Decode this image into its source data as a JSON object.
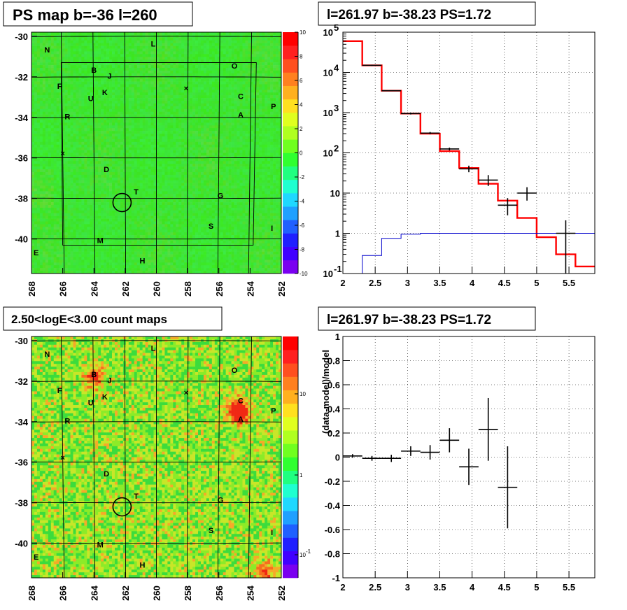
{
  "panels": {
    "ps_map": {
      "title": "PS map b=-36 l=260",
      "x_ticks": [
        "268",
        "266",
        "264",
        "262",
        "260",
        "258",
        "256",
        "254",
        "252"
      ],
      "y_ticks": [
        "-30",
        "-32",
        "-34",
        "-36",
        "-38",
        "-40"
      ],
      "palette_ticks": [
        "10",
        "8",
        "6",
        "4",
        "2",
        "0",
        "-2",
        "-4",
        "-6",
        "-8",
        "-10"
      ]
    },
    "count_map": {
      "title": "2.50<logE<3.00 count maps",
      "x_ticks": [
        "268",
        "266",
        "264",
        "262",
        "260",
        "258",
        "256",
        "254",
        "252"
      ],
      "y_ticks": [
        "-30",
        "-32",
        "-34",
        "-36",
        "-38",
        "-40"
      ],
      "palette_ticks": [
        "10",
        "1",
        "10"
      ],
      "palette_sup": "-1"
    },
    "spectrum": {
      "title": "l=261.97 b=-38.23 PS=1.72"
    },
    "residual": {
      "title": "l=261.97 b=-38.23 PS=1.72"
    }
  },
  "sources": [
    {
      "label": "N",
      "x": 267.0,
      "y": -30.8
    },
    {
      "label": "B",
      "x": 264.0,
      "y": -31.8
    },
    {
      "label": "J",
      "x": 263.0,
      "y": -32.1
    },
    {
      "label": "L",
      "x": 260.2,
      "y": -30.5
    },
    {
      "label": "O",
      "x": 255.0,
      "y": -31.6
    },
    {
      "label": "F",
      "x": 266.2,
      "y": -32.6
    },
    {
      "label": "U",
      "x": 264.2,
      "y": -33.2
    },
    {
      "label": "K",
      "x": 263.3,
      "y": -32.9
    },
    {
      "label": "C",
      "x": 254.6,
      "y": -33.1
    },
    {
      "label": "A",
      "x": 254.6,
      "y": -34.0
    },
    {
      "label": "P",
      "x": 252.5,
      "y": -33.6
    },
    {
      "label": "R",
      "x": 265.7,
      "y": -34.1
    },
    {
      "label": "D",
      "x": 263.2,
      "y": -36.7
    },
    {
      "label": "T",
      "x": 261.3,
      "y": -37.8
    },
    {
      "label": "G",
      "x": 255.9,
      "y": -38.0
    },
    {
      "label": "S",
      "x": 256.5,
      "y": -39.5
    },
    {
      "label": "I",
      "x": 252.6,
      "y": -39.6
    },
    {
      "label": "M",
      "x": 263.6,
      "y": -40.2
    },
    {
      "label": "E",
      "x": 267.7,
      "y": -40.8
    },
    {
      "label": "H",
      "x": 260.9,
      "y": -41.2
    }
  ],
  "colors": {
    "model_line": "#ff0000",
    "background_line": "#0000cc",
    "data_points": "#000000",
    "map_base": "#33ee22"
  },
  "chart_data": [
    {
      "type": "heatmap",
      "name_ref": "ps_map",
      "xlim": [
        268,
        252
      ],
      "ylim": [
        -41.7,
        -29.8
      ],
      "zlim": [
        -10,
        10
      ],
      "xlabel": "",
      "ylabel": "",
      "background_level": 0,
      "grid": true
    },
    {
      "type": "heatmap",
      "name_ref": "count_map",
      "xlim": [
        268,
        252
      ],
      "ylim": [
        -41.7,
        -29.8
      ],
      "zscale": "log",
      "xlabel": "",
      "ylabel": "",
      "hotspots": [
        {
          "x": 264.0,
          "y": -31.8,
          "level": "high"
        },
        {
          "x": 254.7,
          "y": -33.5,
          "level": "very high"
        },
        {
          "x": 253.0,
          "y": -41.5,
          "level": "high"
        }
      ],
      "grid": true
    },
    {
      "type": "line",
      "name_ref": "spectrum",
      "yscale": "log",
      "xlim": [
        2,
        5.9
      ],
      "ylim": [
        0.1,
        100000
      ],
      "x_ticks": [
        "2",
        "2.5",
        "3",
        "3.5",
        "4",
        "4.5",
        "5",
        "5.5"
      ],
      "xlabel": "",
      "ylabel": "",
      "grid": true,
      "series": [
        {
          "kind": "step",
          "edges": [
            2.0,
            2.3,
            2.6,
            2.9,
            3.2,
            3.5,
            3.8,
            4.1,
            4.4,
            4.7,
            5.0,
            5.3,
            5.6,
            5.9
          ],
          "values": [
            60000,
            15000,
            3500,
            950,
            300,
            110,
            42,
            17,
            6.5,
            2.4,
            0.8,
            0.3,
            0.15
          ]
        },
        {
          "kind": "step",
          "edges": [
            2.3,
            2.6,
            2.9,
            3.2,
            3.5,
            3.8,
            4.1,
            4.4,
            4.7,
            5.0,
            5.3,
            5.6,
            5.9
          ],
          "values": [
            0.28,
            0.75,
            0.95,
            1.0,
            1.0,
            1.0,
            1.0,
            1.0,
            1.0,
            1.0,
            1.0,
            1.0
          ]
        },
        {
          "kind": "points",
          "x": [
            2.45,
            2.75,
            3.05,
            3.35,
            3.65,
            3.95,
            4.25,
            4.55,
            4.85,
            5.45
          ],
          "xerr": [
            0.15,
            0.15,
            0.15,
            0.15,
            0.15,
            0.15,
            0.15,
            0.15,
            0.15,
            0.15
          ],
          "y": [
            15000,
            3500,
            950,
            310,
            125,
            40,
            21,
            5,
            10,
            1
          ],
          "ylo": [
            14500,
            3400,
            900,
            290,
            115,
            33,
            15,
            2.8,
            6.5,
            0.1
          ],
          "yhi": [
            15500,
            3600,
            1000,
            330,
            135,
            48,
            28,
            7.5,
            14,
            2.1
          ]
        }
      ]
    },
    {
      "type": "scatter",
      "name_ref": "residual",
      "xlim": [
        2,
        5.9
      ],
      "ylim": [
        -1,
        1
      ],
      "x_ticks": [
        "2",
        "2.5",
        "3",
        "3.5",
        "4",
        "4.5",
        "5",
        "5.5"
      ],
      "y_ticks": [
        "1",
        "0.8",
        "0.6",
        "0.4",
        "0.2",
        "0",
        "-0.2",
        "-0.4",
        "-0.6",
        "-0.8",
        "-1"
      ],
      "xlabel": "",
      "ylabel": "(data-model)/model",
      "grid": true,
      "series": [
        {
          "x": [
            2.15,
            2.45,
            2.75,
            3.05,
            3.35,
            3.65,
            3.95,
            4.25,
            4.55
          ],
          "xerr": [
            0.15,
            0.15,
            0.15,
            0.15,
            0.15,
            0.15,
            0.15,
            0.15,
            0.15
          ],
          "y": [
            0.01,
            -0.01,
            -0.01,
            0.05,
            0.04,
            0.14,
            -0.08,
            0.23,
            -0.25
          ],
          "yerr": [
            0.015,
            0.02,
            0.03,
            0.04,
            0.06,
            0.1,
            0.15,
            0.26,
            0.34
          ]
        }
      ]
    }
  ]
}
